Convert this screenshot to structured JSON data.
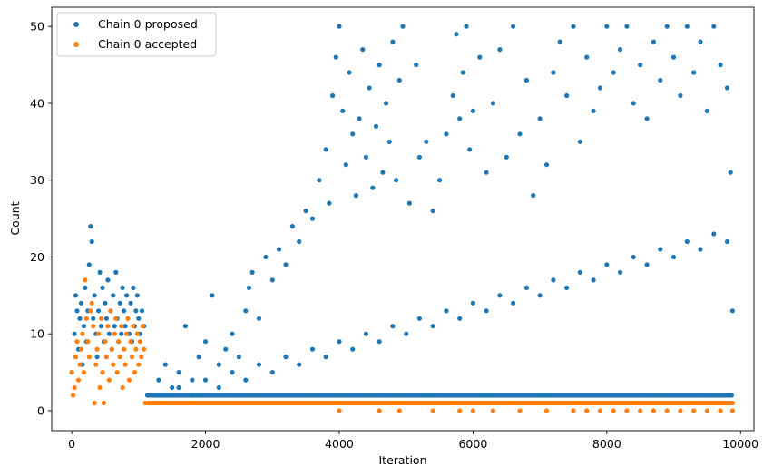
{
  "chart_data": {
    "type": "scatter",
    "xlabel": "Iteration",
    "ylabel": "Count",
    "xlim": [
      -300,
      10200
    ],
    "ylim": [
      -2.6,
      52.5
    ],
    "xticks": [
      0,
      2000,
      4000,
      6000,
      8000,
      10000
    ],
    "yticks": [
      0,
      10,
      20,
      30,
      40,
      50
    ],
    "grid": false,
    "legend_position": "top-left",
    "series": [
      {
        "name": "Chain 0 proposed",
        "color": "#1f77b4",
        "points": [
          [
            0,
            5
          ],
          [
            40,
            10
          ],
          [
            60,
            15
          ],
          [
            80,
            13
          ],
          [
            100,
            8
          ],
          [
            120,
            12
          ],
          [
            140,
            14
          ],
          [
            160,
            6
          ],
          [
            180,
            11
          ],
          [
            200,
            16
          ],
          [
            220,
            9
          ],
          [
            240,
            13
          ],
          [
            260,
            19
          ],
          [
            280,
            24
          ],
          [
            300,
            22
          ],
          [
            320,
            12
          ],
          [
            340,
            15
          ],
          [
            360,
            10
          ],
          [
            380,
            7
          ],
          [
            400,
            13
          ],
          [
            420,
            18
          ],
          [
            440,
            11
          ],
          [
            460,
            16
          ],
          [
            480,
            9
          ],
          [
            500,
            14
          ],
          [
            520,
            12
          ],
          [
            540,
            17
          ],
          [
            560,
            10
          ],
          [
            580,
            13
          ],
          [
            600,
            8
          ],
          [
            620,
            15
          ],
          [
            640,
            11
          ],
          [
            660,
            18
          ],
          [
            680,
            12
          ],
          [
            700,
            9
          ],
          [
            720,
            14
          ],
          [
            740,
            10
          ],
          [
            760,
            16
          ],
          [
            780,
            13
          ],
          [
            800,
            11
          ],
          [
            820,
            15
          ],
          [
            840,
            12
          ],
          [
            860,
            10
          ],
          [
            880,
            14
          ],
          [
            900,
            9
          ],
          [
            920,
            16
          ],
          [
            940,
            11
          ],
          [
            960,
            13
          ],
          [
            980,
            15
          ],
          [
            1000,
            12
          ],
          [
            1020,
            10
          ],
          [
            1050,
            13
          ],
          [
            1080,
            11
          ],
          [
            1150,
            2
          ],
          [
            1300,
            4
          ],
          [
            1400,
            6
          ],
          [
            1500,
            3
          ],
          [
            1600,
            5
          ],
          [
            1700,
            11
          ],
          [
            1800,
            4
          ],
          [
            1900,
            7
          ],
          [
            2000,
            9
          ],
          [
            2100,
            15
          ],
          [
            2200,
            6
          ],
          [
            2300,
            8
          ],
          [
            2400,
            10
          ],
          [
            2500,
            7
          ],
          [
            2600,
            13
          ],
          [
            2650,
            16
          ],
          [
            2700,
            18
          ],
          [
            2800,
            12
          ],
          [
            2900,
            20
          ],
          [
            3000,
            17
          ],
          [
            3100,
            21
          ],
          [
            3200,
            19
          ],
          [
            3300,
            24
          ],
          [
            3400,
            22
          ],
          [
            3500,
            26
          ],
          [
            3600,
            25
          ],
          [
            3700,
            30
          ],
          [
            3800,
            34
          ],
          [
            3850,
            27
          ],
          [
            3900,
            41
          ],
          [
            3950,
            46
          ],
          [
            4000,
            50
          ],
          [
            4050,
            39
          ],
          [
            4100,
            32
          ],
          [
            4150,
            44
          ],
          [
            4200,
            36
          ],
          [
            4250,
            28
          ],
          [
            4300,
            38
          ],
          [
            4350,
            47
          ],
          [
            4400,
            33
          ],
          [
            4450,
            42
          ],
          [
            4500,
            29
          ],
          [
            4550,
            37
          ],
          [
            4600,
            45
          ],
          [
            4650,
            31
          ],
          [
            4700,
            40
          ],
          [
            4750,
            35
          ],
          [
            4800,
            48
          ],
          [
            4850,
            30
          ],
          [
            4900,
            43
          ],
          [
            4950,
            50
          ],
          [
            5050,
            27
          ],
          [
            5150,
            45
          ],
          [
            5200,
            33
          ],
          [
            5300,
            35
          ],
          [
            5400,
            26
          ],
          [
            5500,
            30
          ],
          [
            5600,
            36
          ],
          [
            5700,
            41
          ],
          [
            5750,
            49
          ],
          [
            5800,
            38
          ],
          [
            5850,
            44
          ],
          [
            5900,
            50
          ],
          [
            5950,
            34
          ],
          [
            6000,
            39
          ],
          [
            6100,
            46
          ],
          [
            6200,
            31
          ],
          [
            6300,
            40
          ],
          [
            6400,
            47
          ],
          [
            6500,
            33
          ],
          [
            6600,
            50
          ],
          [
            6700,
            36
          ],
          [
            6800,
            43
          ],
          [
            6900,
            28
          ],
          [
            7000,
            38
          ],
          [
            7100,
            32
          ],
          [
            7200,
            44
          ],
          [
            7300,
            48
          ],
          [
            7400,
            41
          ],
          [
            7500,
            50
          ],
          [
            7600,
            35
          ],
          [
            7700,
            46
          ],
          [
            7800,
            39
          ],
          [
            7900,
            42
          ],
          [
            8000,
            50
          ],
          [
            8100,
            44
          ],
          [
            8200,
            47
          ],
          [
            8300,
            50
          ],
          [
            8400,
            40
          ],
          [
            8500,
            45
          ],
          [
            8600,
            38
          ],
          [
            8700,
            48
          ],
          [
            8800,
            43
          ],
          [
            8900,
            50
          ],
          [
            9000,
            46
          ],
          [
            9100,
            41
          ],
          [
            9200,
            50
          ],
          [
            9300,
            44
          ],
          [
            9400,
            48
          ],
          [
            9500,
            39
          ],
          [
            9600,
            50
          ],
          [
            9700,
            45
          ],
          [
            9800,
            42
          ],
          [
            9850,
            31
          ],
          [
            9880,
            13
          ],
          [
            1200,
            1
          ],
          [
            1400,
            2
          ],
          [
            1600,
            3
          ],
          [
            1800,
            2
          ],
          [
            2000,
            4
          ],
          [
            2200,
            3
          ],
          [
            2400,
            5
          ],
          [
            2600,
            4
          ],
          [
            2800,
            6
          ],
          [
            3000,
            5
          ],
          [
            3200,
            7
          ],
          [
            3400,
            6
          ],
          [
            3600,
            8
          ],
          [
            3800,
            7
          ],
          [
            4000,
            9
          ],
          [
            4200,
            8
          ],
          [
            4400,
            10
          ],
          [
            4600,
            9
          ],
          [
            4800,
            11
          ],
          [
            5000,
            10
          ],
          [
            5200,
            12
          ],
          [
            5400,
            11
          ],
          [
            5600,
            13
          ],
          [
            5800,
            12
          ],
          [
            6000,
            14
          ],
          [
            6200,
            13
          ],
          [
            6400,
            15
          ],
          [
            6600,
            14
          ],
          [
            6800,
            16
          ],
          [
            7000,
            15
          ],
          [
            7200,
            17
          ],
          [
            7400,
            16
          ],
          [
            7600,
            18
          ],
          [
            7800,
            17
          ],
          [
            8000,
            19
          ],
          [
            8200,
            18
          ],
          [
            8400,
            20
          ],
          [
            8600,
            19
          ],
          [
            8800,
            21
          ],
          [
            9000,
            20
          ],
          [
            9200,
            22
          ],
          [
            9400,
            21
          ],
          [
            9600,
            23
          ],
          [
            9800,
            22
          ]
        ]
      },
      {
        "name": "Chain 0 accepted",
        "color": "#ff7f0e",
        "points": [
          [
            0,
            5
          ],
          [
            20,
            2
          ],
          [
            40,
            3
          ],
          [
            60,
            7
          ],
          [
            80,
            9
          ],
          [
            100,
            4
          ],
          [
            120,
            6
          ],
          [
            140,
            8
          ],
          [
            160,
            10
          ],
          [
            180,
            5
          ],
          [
            200,
            17
          ],
          [
            220,
            12
          ],
          [
            240,
            9
          ],
          [
            260,
            7
          ],
          [
            280,
            13
          ],
          [
            300,
            14
          ],
          [
            320,
            11
          ],
          [
            340,
            1
          ],
          [
            360,
            6
          ],
          [
            380,
            8
          ],
          [
            400,
            10
          ],
          [
            420,
            3
          ],
          [
            440,
            12
          ],
          [
            460,
            5
          ],
          [
            480,
            1
          ],
          [
            500,
            9
          ],
          [
            520,
            7
          ],
          [
            540,
            11
          ],
          [
            560,
            4
          ],
          [
            580,
            13
          ],
          [
            600,
            8
          ],
          [
            620,
            6
          ],
          [
            640,
            10
          ],
          [
            660,
            12
          ],
          [
            680,
            5
          ],
          [
            700,
            9
          ],
          [
            720,
            7
          ],
          [
            740,
            11
          ],
          [
            760,
            3
          ],
          [
            780,
            8
          ],
          [
            800,
            6
          ],
          [
            820,
            10
          ],
          [
            840,
            12
          ],
          [
            860,
            4
          ],
          [
            880,
            9
          ],
          [
            900,
            7
          ],
          [
            920,
            11
          ],
          [
            940,
            5
          ],
          [
            960,
            8
          ],
          [
            980,
            10
          ],
          [
            1000,
            6
          ],
          [
            1020,
            9
          ],
          [
            1040,
            7
          ],
          [
            1060,
            11
          ],
          [
            1080,
            8
          ],
          [
            1100,
            1
          ],
          [
            4000,
            0
          ],
          [
            4600,
            0
          ],
          [
            4900,
            0
          ],
          [
            5400,
            0
          ],
          [
            5800,
            0
          ],
          [
            6000,
            0
          ],
          [
            6300,
            0
          ],
          [
            6700,
            0
          ],
          [
            7100,
            0
          ],
          [
            7500,
            0
          ],
          [
            7700,
            0
          ],
          [
            7900,
            0
          ],
          [
            8100,
            0
          ],
          [
            8300,
            0
          ],
          [
            8500,
            0
          ],
          [
            8700,
            0
          ],
          [
            8900,
            0
          ],
          [
            9100,
            0
          ],
          [
            9300,
            0
          ],
          [
            9500,
            0
          ],
          [
            9700,
            0
          ],
          [
            9880,
            0
          ]
        ]
      }
    ]
  }
}
